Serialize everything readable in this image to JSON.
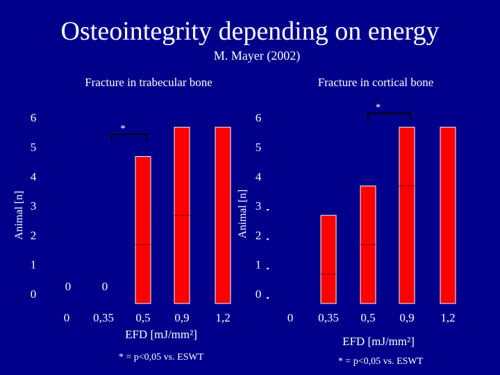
{
  "title": "Osteointegrity depending on energy",
  "subtitle": "M. Mayer (2002)",
  "colors": {
    "background": "#00008b",
    "bar": "#ff0000",
    "bar_divider": "#8b0000",
    "text": "#ffffff",
    "bracket": "#000000"
  },
  "chart_data": [
    {
      "type": "bar",
      "title": "Fracture in trabecular bone",
      "xlabel": "EFD [mJ/mm²]",
      "ylabel": "Animal [n]",
      "categories": [
        "0",
        "0,35",
        "0,5",
        "0,9",
        "1,2"
      ],
      "values": [
        0,
        0,
        5,
        6,
        6
      ],
      "zero_labels": [
        "0",
        "0"
      ],
      "divider_levels": [
        null,
        null,
        2,
        3,
        null
      ],
      "y_ticks": [
        "0",
        "1",
        "2",
        "3",
        "4",
        "5",
        "6"
      ],
      "ylim": [
        0,
        6
      ],
      "significance": {
        "label": "*",
        "bracket_between": [
          "0,35",
          "0,5"
        ]
      },
      "footnote": "* = p<0,05 vs. ESWT"
    },
    {
      "type": "bar",
      "title": "Fracture in cortical bone",
      "xlabel": "EFD [mJ/mm²]",
      "ylabel": "Animal [n]",
      "categories": [
        "0",
        "0,35",
        "0,5",
        "0,9",
        "1,2"
      ],
      "values": [
        0,
        3,
        4,
        6,
        6
      ],
      "divider_levels": [
        null,
        1,
        2,
        4,
        null
      ],
      "y_ticks": [
        "0",
        "1",
        "2",
        "3",
        "4",
        "5",
        "6"
      ],
      "ylim": [
        0,
        6
      ],
      "significance": {
        "label": "*",
        "bracket_between": [
          "0,5",
          "0,9"
        ]
      },
      "footnote": "* = p<0,05 vs. ESWT"
    }
  ]
}
